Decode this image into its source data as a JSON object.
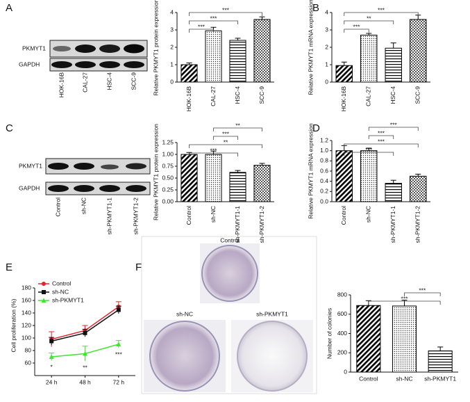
{
  "panel_labels": [
    "A",
    "B",
    "C",
    "D",
    "E",
    "F"
  ],
  "blots": [
    {
      "rows": [
        "PKMYT1",
        "GAPDH"
      ]
    },
    {
      "rows": [
        "PKMYT1",
        "GAPDH"
      ]
    }
  ],
  "chart_data": [
    {
      "type": "bar",
      "ylabel": "Relative PKMYT1 protein expression",
      "categories": [
        "HOK-16B",
        "CAL-27",
        "HSC-4",
        "SCC-9"
      ],
      "values": [
        1.0,
        2.95,
        2.4,
        3.6
      ],
      "errors": [
        0.1,
        0.2,
        0.12,
        0.15
      ],
      "hatches": [
        "diagonal",
        "dots",
        "horizontal",
        "checker"
      ],
      "color": "#000000",
      "ylim": [
        0,
        4
      ],
      "yticks": [
        0,
        1,
        2,
        3,
        4
      ],
      "brackets": [
        {
          "from": 0,
          "to": 3,
          "label": "***"
        },
        {
          "from": 0,
          "to": 2,
          "label": "***"
        },
        {
          "from": 0,
          "to": 1,
          "label": "***"
        }
      ]
    },
    {
      "type": "bar",
      "ylabel": "Relative PKMYT1 mRNA expression",
      "categories": [
        "HOK-16B",
        "CAL-27",
        "HSC-4",
        "SCC-9"
      ],
      "values": [
        0.95,
        2.7,
        1.95,
        3.6
      ],
      "errors": [
        0.2,
        0.1,
        0.3,
        0.25
      ],
      "hatches": [
        "diagonal",
        "dots",
        "horizontal",
        "checker"
      ],
      "color": "#000000",
      "ylim": [
        0,
        4
      ],
      "yticks": [
        0,
        1,
        2,
        3,
        4
      ],
      "brackets": [
        {
          "from": 0,
          "to": 3,
          "label": "***"
        },
        {
          "from": 0,
          "to": 2,
          "label": "**"
        },
        {
          "from": 0,
          "to": 1,
          "label": "***"
        }
      ]
    },
    {
      "type": "bar",
      "ylabel": "Relative PKMYT1 protein expression",
      "categories": [
        "Control",
        "sh-NC",
        "sh-PKMYT1-1",
        "sh-PKMYT1-2"
      ],
      "values": [
        1.0,
        1.0,
        0.62,
        0.77
      ],
      "errors": [
        0.04,
        0.07,
        0.04,
        0.04
      ],
      "hatches": [
        "diagonal",
        "dots",
        "horizontal",
        "checker"
      ],
      "color": "#000000",
      "ylim": [
        0,
        1.25
      ],
      "yticks": [
        {
          "value": 0,
          "label": "0.00"
        },
        {
          "value": 0.25,
          "label": "0.25"
        },
        {
          "value": 0.5,
          "label": "0.50"
        },
        {
          "value": 0.75,
          "label": "0.75"
        },
        {
          "value": 1,
          "label": "1.00"
        },
        {
          "value": 1.25,
          "label": "1.25"
        }
      ],
      "brackets": [
        {
          "from": 1,
          "to": 3,
          "label": "**"
        },
        {
          "from": 1,
          "to": 2,
          "label": "***"
        },
        {
          "from": 0,
          "to": 3,
          "label": "**"
        },
        {
          "from": 0,
          "to": 2,
          "label": "***"
        }
      ]
    },
    {
      "type": "bar",
      "ylabel": "Relative PKMYT1 mRNA expression",
      "categories": [
        "Control",
        "sh-NC",
        "sh-PKMYT1-1",
        "sh-PKMYT1-2"
      ],
      "values": [
        1.0,
        1.0,
        0.36,
        0.5
      ],
      "errors": [
        0.1,
        0.05,
        0.06,
        0.04
      ],
      "hatches": [
        "diagonal",
        "dots",
        "horizontal",
        "checker"
      ],
      "color": "#000000",
      "ylim": [
        0,
        1.2
      ],
      "yticks": [
        {
          "value": 0,
          "label": "0.0"
        },
        {
          "value": 0.2,
          "label": "0.2"
        },
        {
          "value": 0.4,
          "label": "0.4"
        },
        {
          "value": 0.6,
          "label": "0.6"
        },
        {
          "value": 0.8,
          "label": "0.8"
        },
        {
          "value": 1,
          "label": "1.0"
        },
        {
          "value": 1.2,
          "label": "1.2"
        }
      ],
      "brackets": [
        {
          "from": 1,
          "to": 3,
          "label": "***"
        },
        {
          "from": 1,
          "to": 2,
          "label": "***"
        },
        {
          "from": 0,
          "to": 3,
          "label": "***"
        },
        {
          "from": 0,
          "to": 2,
          "label": "***"
        }
      ]
    },
    {
      "type": "line",
      "ylabel": "Cell proliferation (%)",
      "categories": [
        "24 h",
        "48 h",
        "72 h"
      ],
      "series": [
        {
          "name": "Control",
          "color": "#e8212a",
          "marker": "circle",
          "values": [
            98,
            112,
            150
          ],
          "errors": [
            12,
            8,
            8
          ]
        },
        {
          "name": "sh-NC",
          "color": "#111111",
          "marker": "square",
          "values": [
            95,
            108,
            145
          ],
          "errors": [
            6,
            6,
            6
          ]
        },
        {
          "name": "sh-PKMYT1",
          "color": "#3ee62c",
          "marker": "triangle",
          "values": [
            70,
            75,
            90
          ],
          "errors": [
            6,
            12,
            6
          ]
        }
      ],
      "annotations": [
        "*",
        "**",
        "***"
      ],
      "ylim": [
        40,
        200
      ],
      "yticks": [
        60,
        80,
        100,
        120,
        140,
        160,
        180
      ]
    },
    {
      "type": "bar",
      "ylabel": "Number of colonies",
      "categories": [
        "Control",
        "sh-NC",
        "sh-PKMYT1"
      ],
      "values": [
        690,
        685,
        220
      ],
      "errors": [
        50,
        60,
        40
      ],
      "hatches": [
        "diagonal",
        "dots",
        "horizontal"
      ],
      "color": "#000000",
      "ylim": [
        0,
        800
      ],
      "yticks": [
        0,
        200,
        400,
        600,
        800
      ],
      "brackets": [
        {
          "from": 1,
          "to": 2,
          "label": "***"
        },
        {
          "from": 0,
          "to": 2,
          "label": "***"
        }
      ]
    }
  ]
}
